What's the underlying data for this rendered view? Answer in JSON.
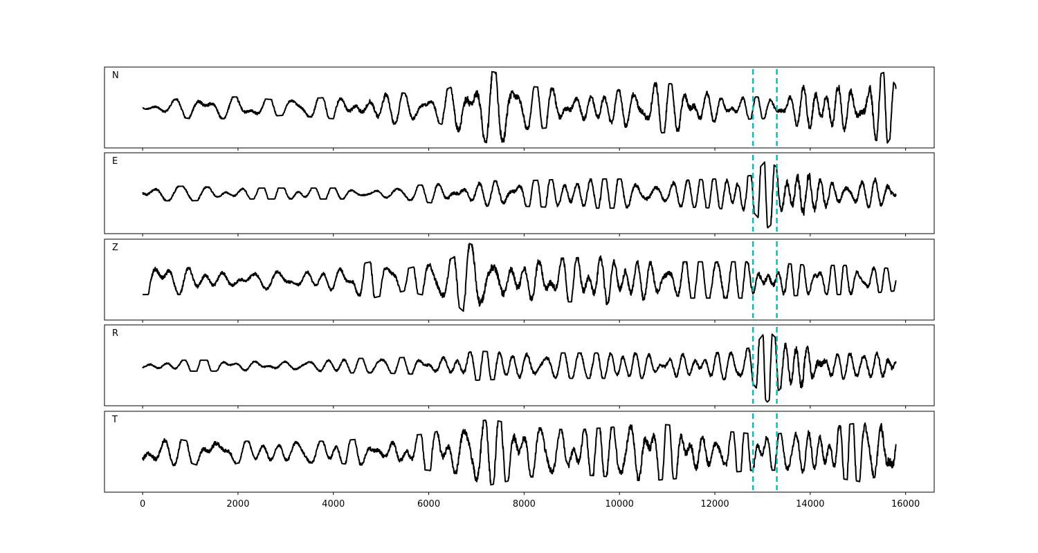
{
  "chart_data": {
    "type": "line",
    "xlim": [
      -800,
      16600
    ],
    "x_ticks": [
      0,
      2000,
      4000,
      6000,
      8000,
      10000,
      12000,
      14000,
      16000
    ],
    "x_tick_labels": [
      "0",
      "2000",
      "4000",
      "6000",
      "8000",
      "10000",
      "12000",
      "14000",
      "16000"
    ],
    "x_range": [
      0,
      15800
    ],
    "markers": [
      12800,
      13300
    ],
    "marker_color": "#00bfbf",
    "line_color": "#000000",
    "shared_x_axis": true,
    "y_ticks_visible": false,
    "panels": [
      {
        "label": "N",
        "series": [
          {
            "x": 0,
            "y": 0.1
          },
          {
            "x": 1000,
            "y": 0.3
          },
          {
            "x": 2000,
            "y": 0.3
          },
          {
            "x": 3000,
            "y": 0.2
          },
          {
            "x": 4000,
            "y": 0.3
          },
          {
            "x": 5000,
            "y": 0.5
          },
          {
            "x": 6000,
            "y": 0.3
          },
          {
            "x": 6700,
            "y": 0.7
          },
          {
            "x": 7300,
            "y": 1.0
          },
          {
            "x": 7700,
            "y": 0.9
          },
          {
            "x": 8000,
            "y": 0.6
          },
          {
            "x": 9000,
            "y": 0.5
          },
          {
            "x": 10000,
            "y": 0.5
          },
          {
            "x": 10800,
            "y": 0.7
          },
          {
            "x": 11500,
            "y": 0.6
          },
          {
            "x": 12000,
            "y": 0.4
          },
          {
            "x": 12800,
            "y": 0.3
          },
          {
            "x": 13300,
            "y": 0.3
          },
          {
            "x": 14000,
            "y": 0.7
          },
          {
            "x": 15000,
            "y": 0.7
          },
          {
            "x": 15600,
            "y": 1.0
          },
          {
            "x": 15800,
            "y": 0.6
          }
        ]
      },
      {
        "label": "E",
        "series": [
          {
            "x": 0,
            "y": 0.2
          },
          {
            "x": 1000,
            "y": 0.2
          },
          {
            "x": 2000,
            "y": 0.15
          },
          {
            "x": 3000,
            "y": 0.15
          },
          {
            "x": 4000,
            "y": 0.15
          },
          {
            "x": 5000,
            "y": 0.15
          },
          {
            "x": 6000,
            "y": 0.25
          },
          {
            "x": 7000,
            "y": 0.35
          },
          {
            "x": 8000,
            "y": 0.35
          },
          {
            "x": 9000,
            "y": 0.4
          },
          {
            "x": 10000,
            "y": 0.4
          },
          {
            "x": 11000,
            "y": 0.35
          },
          {
            "x": 12000,
            "y": 0.4
          },
          {
            "x": 12800,
            "y": 0.5
          },
          {
            "x": 13100,
            "y": 0.95
          },
          {
            "x": 13400,
            "y": 0.6
          },
          {
            "x": 13800,
            "y": 1.0
          },
          {
            "x": 14500,
            "y": 0.4
          },
          {
            "x": 15200,
            "y": 0.4
          },
          {
            "x": 15700,
            "y": 0.5
          },
          {
            "x": 15800,
            "y": 0.3
          }
        ]
      },
      {
        "label": "Z",
        "series": [
          {
            "x": 0,
            "y": 0.4
          },
          {
            "x": 1000,
            "y": 0.4
          },
          {
            "x": 2000,
            "y": 0.3
          },
          {
            "x": 3000,
            "y": 0.3
          },
          {
            "x": 4000,
            "y": 0.3
          },
          {
            "x": 4800,
            "y": 0.5
          },
          {
            "x": 5500,
            "y": 0.3
          },
          {
            "x": 6500,
            "y": 0.6
          },
          {
            "x": 6850,
            "y": 1.0
          },
          {
            "x": 7500,
            "y": 0.7
          },
          {
            "x": 8000,
            "y": 0.6
          },
          {
            "x": 9000,
            "y": 0.6
          },
          {
            "x": 10000,
            "y": 0.7
          },
          {
            "x": 11000,
            "y": 0.5
          },
          {
            "x": 12000,
            "y": 0.5
          },
          {
            "x": 13000,
            "y": 0.5
          },
          {
            "x": 14000,
            "y": 0.4
          },
          {
            "x": 15000,
            "y": 0.4
          },
          {
            "x": 15800,
            "y": 0.3
          }
        ]
      },
      {
        "label": "R",
        "series": [
          {
            "x": 0,
            "y": 0.15
          },
          {
            "x": 1000,
            "y": 0.15
          },
          {
            "x": 2000,
            "y": 0.15
          },
          {
            "x": 3000,
            "y": 0.15
          },
          {
            "x": 4000,
            "y": 0.2
          },
          {
            "x": 5000,
            "y": 0.2
          },
          {
            "x": 6000,
            "y": 0.25
          },
          {
            "x": 7000,
            "y": 0.4
          },
          {
            "x": 8000,
            "y": 0.35
          },
          {
            "x": 9000,
            "y": 0.35
          },
          {
            "x": 10000,
            "y": 0.35
          },
          {
            "x": 11000,
            "y": 0.35
          },
          {
            "x": 12000,
            "y": 0.35
          },
          {
            "x": 12800,
            "y": 0.5
          },
          {
            "x": 13100,
            "y": 1.0
          },
          {
            "x": 13400,
            "y": 0.6
          },
          {
            "x": 13850,
            "y": 1.0
          },
          {
            "x": 14500,
            "y": 0.4
          },
          {
            "x": 15200,
            "y": 0.4
          },
          {
            "x": 15700,
            "y": 0.6
          },
          {
            "x": 15800,
            "y": 0.2
          }
        ]
      },
      {
        "label": "T",
        "series": [
          {
            "x": 0,
            "y": 0.5
          },
          {
            "x": 1000,
            "y": 0.3
          },
          {
            "x": 1500,
            "y": 0.5
          },
          {
            "x": 2000,
            "y": 0.3
          },
          {
            "x": 3000,
            "y": 0.3
          },
          {
            "x": 4000,
            "y": 0.3
          },
          {
            "x": 5000,
            "y": 0.4
          },
          {
            "x": 6000,
            "y": 0.5
          },
          {
            "x": 6800,
            "y": 0.8
          },
          {
            "x": 7300,
            "y": 0.9
          },
          {
            "x": 8000,
            "y": 0.7
          },
          {
            "x": 9000,
            "y": 0.6
          },
          {
            "x": 10000,
            "y": 0.7
          },
          {
            "x": 10500,
            "y": 0.8
          },
          {
            "x": 11500,
            "y": 0.7
          },
          {
            "x": 12000,
            "y": 0.6
          },
          {
            "x": 12800,
            "y": 0.5
          },
          {
            "x": 13300,
            "y": 0.5
          },
          {
            "x": 14000,
            "y": 0.6
          },
          {
            "x": 15000,
            "y": 0.8
          },
          {
            "x": 15600,
            "y": 1.0
          },
          {
            "x": 15800,
            "y": 0.7
          }
        ]
      }
    ]
  }
}
